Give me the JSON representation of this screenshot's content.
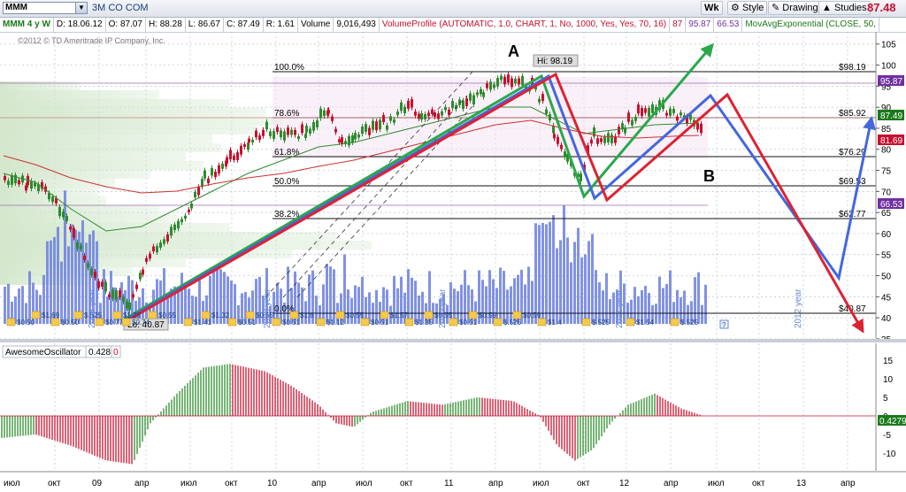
{
  "toolbar": {
    "symbol": "MMM",
    "company": "3M CO COM",
    "buttons": [
      "Wk",
      "Style",
      "Drawings",
      "Studies"
    ],
    "last_price": "87.48"
  },
  "infobar": {
    "title": "MMM 4 y W",
    "date": "D: 18.06.12",
    "open": "O: 87.07",
    "high": "H: 88.28",
    "low": "L: 86.67",
    "close": "C: 87.49",
    "range": "R: 1.61",
    "volume_label": "Volume",
    "volume_value": "9,016,493",
    "volume_profile": "VolumeProfile (AUTOMATIC, 1.0, CHART, 1, No, 1000, Yes, Yes, 70, 16)",
    "vp_val1": "87",
    "vp_val2": "95.87",
    "vp_val3": "66.53",
    "ma_study": "MovAvgExponential (CLOSE, 50,"
  },
  "copyright": "©2012 © TD Ameritrade IP Company, Inc.",
  "annotations": {
    "a": "A",
    "b": "B"
  },
  "high_label": "Hi: 98.19",
  "low_label": "Lo: 40.87",
  "fib_levels": [
    {
      "pct": "100.0%",
      "price": "$98.19"
    },
    {
      "pct": "78.6%",
      "price": "$85.92"
    },
    {
      "pct": "61.8%",
      "price": "$76.29"
    },
    {
      "pct": "50.0%",
      "price": "$69.53"
    },
    {
      "pct": "38.2%",
      "price": "$62.77"
    },
    {
      "pct": "0.0%",
      "price": "$40.87"
    }
  ],
  "price_axis_ticks": [
    "105",
    "100",
    "95",
    "90",
    "85",
    "80",
    "75",
    "70",
    "65",
    "60",
    "55",
    "50",
    "45",
    "40",
    "35"
  ],
  "price_axis_badges": [
    {
      "value": "95.87",
      "color": "#7030a0"
    },
    {
      "value": "87.49",
      "color": "#1a7a1a"
    },
    {
      "value": "81.69",
      "color": "#c8102e"
    },
    {
      "value": "66.53",
      "color": "#7030a0"
    }
  ],
  "year_labels": [
    "2008 year",
    "2009 year",
    "2010 year",
    "2011 year",
    "2012 year"
  ],
  "dividends": [
    "$0.50",
    "$0.50",
    "$0.77",
    "$0.74",
    "$1.41",
    "$0.51",
    "$0.51",
    "$1.12",
    "$0.51",
    "$1.35",
    "$0.51",
    "$.525",
    "$1.4",
    "$.525",
    "$1.54",
    "$.525",
    "$1.69",
    "$.525",
    "$1.28",
    "$0.55",
    "$1.32",
    "$0.55",
    "$1.6",
    "$0.55",
    "$1.57",
    "$0.55",
    "$0.59",
    "$0.59"
  ],
  "oscillator": {
    "name": "AwesomeOscillator",
    "value": "0.428",
    "flag": "0",
    "axis_ticks": [
      "15",
      "10",
      "5",
      "0",
      "-5",
      "-10"
    ],
    "current_badge": "0.4279"
  },
  "time_axis": [
    "июл",
    "окт",
    "09",
    "апр",
    "июл",
    "окт",
    "10",
    "апр",
    "июл",
    "окт",
    "11",
    "апр",
    "июл",
    "окт",
    "12",
    "апр",
    "июл",
    "окт",
    "13",
    "апр"
  ],
  "colors": {
    "price_line": "#000000",
    "volume": "#6b7fe0",
    "ema": "#2e8b2e",
    "sma": "#d03030",
    "green_arrow": "#2aa84a",
    "blue_arrow": "#4466dd",
    "red_arrow": "#dd2233"
  }
}
